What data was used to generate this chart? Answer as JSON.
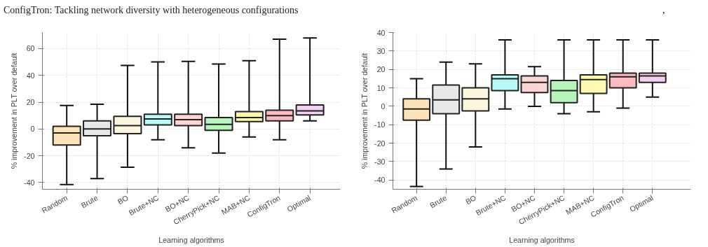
{
  "chart_data": [
    {
      "type": "box",
      "title": "ConfigTron: Tackling network diversity with heterogeneous configurations",
      "annotations": [
        ","
      ],
      "xlabel": "Learning algorithms",
      "ylabel": "% improvement in PLT over default",
      "categories": [
        "Random",
        "Brute",
        "BO",
        "Brute+NC",
        "BO+NC",
        "CherryPick+NC",
        "MAB+NC",
        "ConfigTron",
        "Optimal"
      ],
      "colors": [
        "#fde3b8",
        "#e8e8e8",
        "#fbf6dc",
        "#b8fafa",
        "#fcd5d5",
        "#b8f5b8",
        "#fdfab0",
        "#fdb8c0",
        "#f4d0f4"
      ],
      "ylim": [
        -45,
        72
      ],
      "yticks": [
        -40,
        -20,
        0,
        20,
        40,
        60
      ],
      "grid": true,
      "boxes": [
        {
          "low": -41.5,
          "q1": -12,
          "median": -3,
          "q3": 2,
          "high": 17.5
        },
        {
          "low": -37,
          "q1": -5,
          "median": 0,
          "q3": 6,
          "high": 18.5
        },
        {
          "low": -28.5,
          "q1": -3.5,
          "median": 2.5,
          "q3": 9.5,
          "high": 47.5
        },
        {
          "low": -8,
          "q1": 3,
          "median": 7.5,
          "q3": 11,
          "high": 50
        },
        {
          "low": -14,
          "q1": 2.5,
          "median": 7,
          "q3": 11,
          "high": 50.5
        },
        {
          "low": -18,
          "q1": -1,
          "median": 3.5,
          "q3": 8.5,
          "high": 48.5
        },
        {
          "low": -6,
          "q1": 5.5,
          "median": 8.5,
          "q3": 13,
          "high": 51
        },
        {
          "low": -8,
          "q1": 6,
          "median": 10,
          "q3": 14,
          "high": 67
        },
        {
          "low": 6,
          "q1": 10.5,
          "median": 13.5,
          "q3": 18,
          "high": 68
        }
      ]
    },
    {
      "type": "box",
      "xlabel": "Learning algorithms",
      "ylabel": "% improvement in PLT over default",
      "categories": [
        "Random",
        "Brute",
        "BO",
        "Brute+NC",
        "BO+NC",
        "CherryPick+NC",
        "MAB+NC",
        "ConfigTron",
        "Optimal"
      ],
      "colors": [
        "#fde3b8",
        "#e8e8e8",
        "#fbf6dc",
        "#b8fafa",
        "#fcd5d5",
        "#b8f5b8",
        "#fdfab0",
        "#fdb8c0",
        "#f4d0f4"
      ],
      "ylim": [
        -45,
        40
      ],
      "yticks": [
        -40,
        -30,
        -20,
        -10,
        0,
        10,
        20,
        30,
        40
      ],
      "grid": true,
      "boxes": [
        {
          "low": -43.5,
          "q1": -7.5,
          "median": -1.5,
          "q3": 4,
          "high": 15
        },
        {
          "low": -34,
          "q1": -4,
          "median": 3.5,
          "q3": 11.5,
          "high": 24
        },
        {
          "low": -22,
          "q1": -2.5,
          "median": 4,
          "q3": 10,
          "high": 23
        },
        {
          "low": -1.5,
          "q1": 8.5,
          "median": 15,
          "q3": 17,
          "high": 36
        },
        {
          "low": 0,
          "q1": 7.5,
          "median": 13,
          "q3": 16.5,
          "high": 21.5
        },
        {
          "low": -4,
          "q1": 2,
          "median": 8.5,
          "q3": 14,
          "high": 36
        },
        {
          "low": -3,
          "q1": 7,
          "median": 14.5,
          "q3": 17,
          "high": 36
        },
        {
          "low": -1,
          "q1": 10,
          "median": 16,
          "q3": 18,
          "high": 36
        },
        {
          "low": 5,
          "q1": 13,
          "median": 16.5,
          "q3": 18,
          "high": 36
        }
      ]
    }
  ]
}
